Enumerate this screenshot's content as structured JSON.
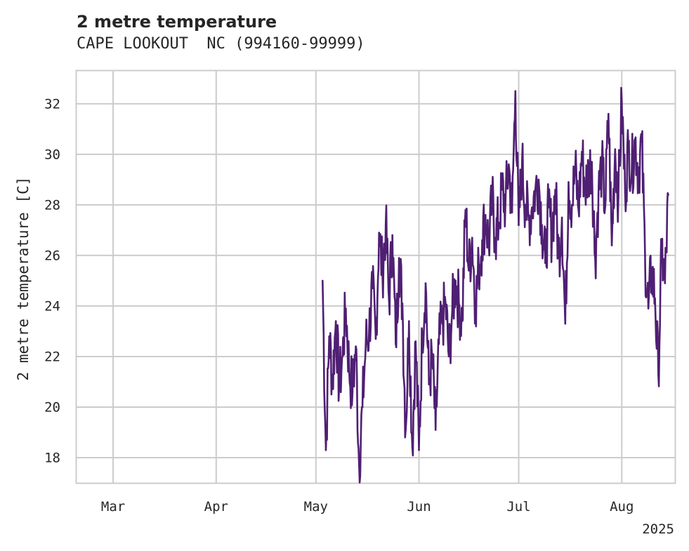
{
  "chart_data": {
    "type": "line",
    "title": "2 metre temperature",
    "subtitle": "CAPE LOOKOUT  NC (994160-99999)",
    "xlabel": "",
    "ylabel": "2 metre temperature [C]",
    "x_tick_labels": [
      "Mar",
      "Apr",
      "May",
      "Jun",
      "Jul",
      "Aug"
    ],
    "x_tick_dates": [
      "2025-03-01",
      "2025-04-01",
      "2025-05-01",
      "2025-06-01",
      "2025-07-01",
      "2025-08-01"
    ],
    "x_offset_label": "2025",
    "xlim": [
      "2025-02-18",
      "2025-08-17"
    ],
    "y_ticks": [
      18,
      20,
      22,
      24,
      26,
      28,
      30,
      32
    ],
    "ylim": [
      17,
      33.3
    ],
    "grid": true,
    "legend": "none",
    "line_color": "#4f1f73",
    "series": [
      {
        "x": [
          "2025-05-03",
          "2025-05-04",
          "2025-05-05",
          "2025-05-06",
          "2025-05-07",
          "2025-05-08",
          "2025-05-09",
          "2025-05-10",
          "2025-05-11",
          "2025-05-12",
          "2025-05-13",
          "2025-05-14",
          "2025-05-15",
          "2025-05-16",
          "2025-05-17",
          "2025-05-18",
          "2025-05-19",
          "2025-05-20",
          "2025-05-21",
          "2025-05-22",
          "2025-05-23",
          "2025-05-24",
          "2025-05-25",
          "2025-05-26",
          "2025-05-27",
          "2025-05-28",
          "2025-05-29",
          "2025-05-30",
          "2025-05-31",
          "2025-06-01",
          "2025-06-02",
          "2025-06-03",
          "2025-06-04",
          "2025-06-05",
          "2025-06-06",
          "2025-06-07",
          "2025-06-08",
          "2025-06-09",
          "2025-06-10",
          "2025-06-11",
          "2025-06-12",
          "2025-06-13",
          "2025-06-14",
          "2025-06-15",
          "2025-06-16",
          "2025-06-17",
          "2025-06-18",
          "2025-06-19",
          "2025-06-20",
          "2025-06-21",
          "2025-06-22",
          "2025-06-23",
          "2025-06-24",
          "2025-06-25",
          "2025-06-26",
          "2025-06-27",
          "2025-06-28",
          "2025-06-29",
          "2025-06-30",
          "2025-07-01",
          "2025-07-02",
          "2025-07-03",
          "2025-07-04",
          "2025-07-05",
          "2025-07-06",
          "2025-07-07",
          "2025-07-08",
          "2025-07-09",
          "2025-07-10",
          "2025-07-11",
          "2025-07-12",
          "2025-07-13",
          "2025-07-14",
          "2025-07-15",
          "2025-07-16",
          "2025-07-17",
          "2025-07-18",
          "2025-07-19",
          "2025-07-20",
          "2025-07-21",
          "2025-07-22",
          "2025-07-23",
          "2025-07-24",
          "2025-07-25",
          "2025-07-26",
          "2025-07-27",
          "2025-07-28",
          "2025-07-29",
          "2025-07-30",
          "2025-07-31",
          "2025-08-01",
          "2025-08-02",
          "2025-08-03",
          "2025-08-04",
          "2025-08-05",
          "2025-08-06",
          "2025-08-07",
          "2025-08-08",
          "2025-08-09",
          "2025-08-10",
          "2025-08-11",
          "2025-08-12",
          "2025-08-13",
          "2025-08-14",
          "2025-08-15"
        ],
        "y": [
          25.0,
          18.3,
          22.8,
          21.0,
          23.4,
          20.8,
          22.0,
          23.9,
          21.5,
          20.6,
          22.4,
          17.7,
          20.0,
          22.5,
          23.0,
          24.7,
          22.7,
          26.9,
          25.3,
          27.2,
          24.2,
          26.8,
          22.5,
          25.9,
          24.1,
          19.1,
          23.4,
          18.4,
          22.6,
          18.3,
          22.9,
          24.9,
          20.9,
          22.0,
          19.1,
          22.5,
          23.3,
          24.1,
          22.0,
          23.8,
          25.0,
          24.1,
          23.4,
          27.8,
          25.4,
          26.7,
          24.1,
          25.5,
          26.6,
          27.6,
          26.4,
          28.2,
          26.7,
          27.3,
          28.6,
          28.0,
          29.6,
          27.7,
          32.5,
          27.2,
          29.7,
          28.0,
          27.4,
          27.9,
          28.6,
          29.0,
          27.2,
          25.7,
          27.9,
          26.8,
          28.6,
          25.9,
          27.5,
          23.3,
          28.9,
          28.0,
          29.4,
          27.8,
          30.1,
          28.6,
          29.3,
          29.7,
          25.9,
          28.4,
          29.6,
          27.9,
          31.6,
          26.4,
          30.2,
          28.3,
          32.1,
          28.5,
          30.3,
          29.3,
          30.6,
          29.3,
          30.5,
          26.0,
          23.9,
          25.5,
          24.3,
          21.3,
          26.2,
          24.9,
          28.4
        ]
      }
    ]
  }
}
